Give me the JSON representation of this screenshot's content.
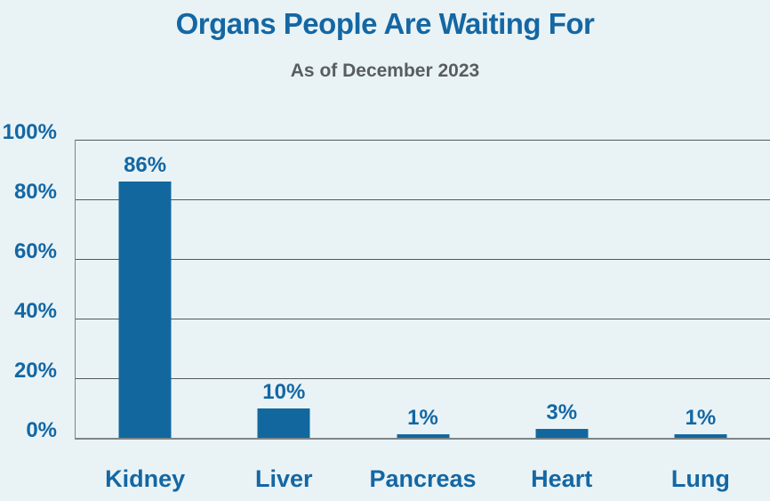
{
  "title": "Organs People Are Waiting For",
  "subtitle": "As of December 2023",
  "colors": {
    "background": "#e9f3f6",
    "bar": "#12689e",
    "accent_text": "#1467a3",
    "subtitle_text": "#595d5f",
    "gridline": "#53585a",
    "axis_line": "#7e8486"
  },
  "chart_data": {
    "type": "bar",
    "title": "Organs People Are Waiting For",
    "subtitle": "As of December 2023",
    "categories": [
      "Kidney",
      "Liver",
      "Pancreas",
      "Heart",
      "Lung"
    ],
    "values": [
      86,
      10,
      1,
      3,
      1
    ],
    "value_labels": [
      "86%",
      "10%",
      "1%",
      "3%",
      "1%"
    ],
    "xlabel": "",
    "ylabel": "",
    "ylim": [
      0,
      100
    ],
    "yticks": [
      0,
      20,
      40,
      60,
      80,
      100
    ],
    "ytick_labels": [
      "0%",
      "20%",
      "40%",
      "60%",
      "80%",
      "100%"
    ],
    "grid": true,
    "legend": false,
    "legend_position": "none"
  }
}
